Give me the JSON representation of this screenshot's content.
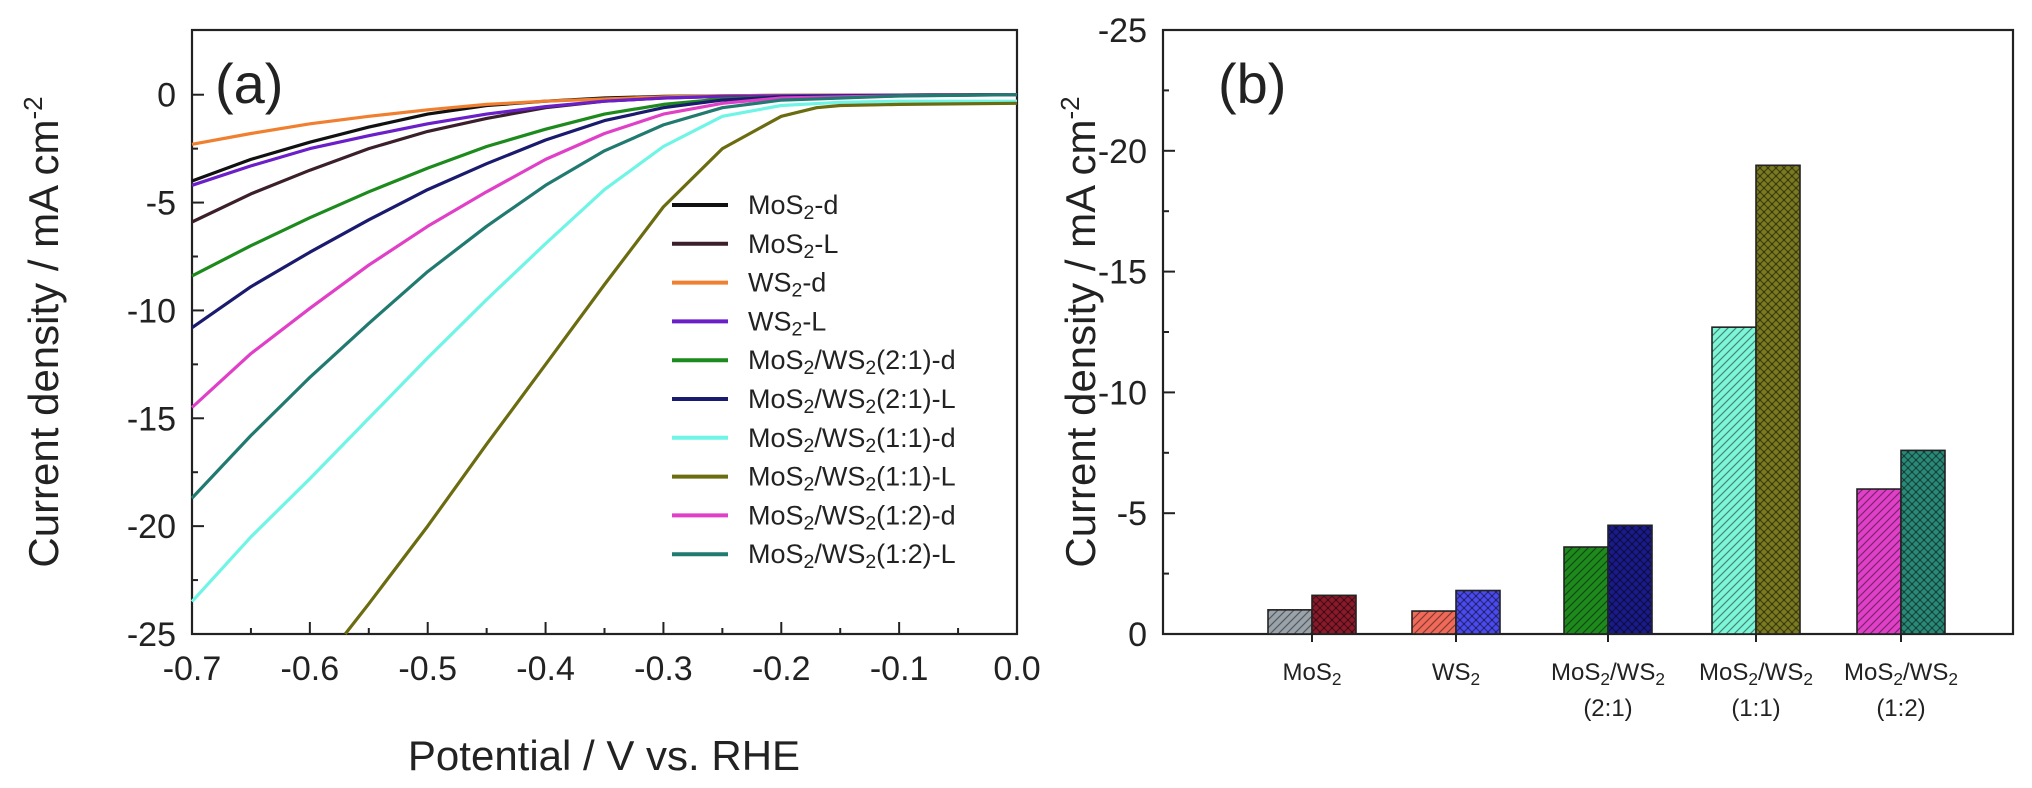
{
  "chart_data": [
    {
      "type": "line",
      "panel_label": "(a)",
      "xlabel": "Potential / V vs. RHE",
      "ylabel": "Current density / mA cm",
      "ylabel_sup": "-2",
      "xlim": [
        -0.7,
        0.0
      ],
      "ylim": [
        -25,
        3
      ],
      "x_ticks": [
        -0.7,
        -0.6,
        -0.5,
        -0.4,
        -0.3,
        -0.2,
        -0.1,
        0.0
      ],
      "x_tick_labels": [
        "-0.7",
        "-0.6",
        "-0.5",
        "-0.4",
        "-0.3",
        "-0.2",
        "-0.1",
        "0.0"
      ],
      "y_ticks": [
        0,
        -5,
        -10,
        -15,
        -20,
        -25
      ],
      "y_tick_labels": [
        "0",
        "-5",
        "-10",
        "-15",
        "-20",
        "-25"
      ],
      "grid": false,
      "legend_position": "right",
      "series": [
        {
          "name": "MoS₂-d",
          "color": "#111111",
          "x": [
            -0.7,
            -0.65,
            -0.6,
            -0.55,
            -0.5,
            -0.45,
            -0.4,
            -0.35,
            -0.3,
            -0.25,
            -0.2,
            -0.1,
            0.0
          ],
          "y": [
            -4.0,
            -3.0,
            -2.2,
            -1.5,
            -0.9,
            -0.5,
            -0.3,
            -0.15,
            -0.08,
            -0.05,
            -0.03,
            -0.02,
            0.0
          ]
        },
        {
          "name": "MoS₂-L",
          "color": "#3b1f2b",
          "x": [
            -0.7,
            -0.65,
            -0.6,
            -0.55,
            -0.5,
            -0.45,
            -0.4,
            -0.35,
            -0.3,
            -0.25,
            -0.2,
            -0.1,
            0.0
          ],
          "y": [
            -5.9,
            -4.6,
            -3.5,
            -2.5,
            -1.7,
            -1.1,
            -0.6,
            -0.3,
            -0.15,
            -0.08,
            -0.04,
            -0.02,
            0.0
          ]
        },
        {
          "name": "WS₂-d",
          "color": "#f08030",
          "x": [
            -0.7,
            -0.65,
            -0.6,
            -0.55,
            -0.5,
            -0.45,
            -0.4,
            -0.35,
            -0.3,
            -0.25,
            -0.2,
            -0.1,
            0.0
          ],
          "y": [
            -2.3,
            -1.8,
            -1.35,
            -1.0,
            -0.7,
            -0.45,
            -0.3,
            -0.2,
            -0.1,
            -0.05,
            -0.03,
            -0.02,
            0.0
          ]
        },
        {
          "name": "WS₂-L",
          "color": "#6a1fc8",
          "x": [
            -0.7,
            -0.65,
            -0.6,
            -0.55,
            -0.5,
            -0.45,
            -0.4,
            -0.35,
            -0.3,
            -0.25,
            -0.2,
            -0.1,
            0.0
          ],
          "y": [
            -4.2,
            -3.3,
            -2.5,
            -1.9,
            -1.35,
            -0.9,
            -0.55,
            -0.3,
            -0.15,
            -0.08,
            -0.05,
            -0.02,
            0.0
          ]
        },
        {
          "name": "MoS₂/WS₂(2:1)-d",
          "color": "#1d8a1d",
          "x": [
            -0.7,
            -0.65,
            -0.6,
            -0.55,
            -0.5,
            -0.45,
            -0.4,
            -0.35,
            -0.3,
            -0.25,
            -0.2,
            -0.1,
            0.0
          ],
          "y": [
            -8.4,
            -7.0,
            -5.7,
            -4.5,
            -3.4,
            -2.4,
            -1.6,
            -0.9,
            -0.45,
            -0.2,
            -0.1,
            -0.03,
            0.0
          ]
        },
        {
          "name": "MoS₂/WS₂(2:1)-L",
          "color": "#1a1a6e",
          "x": [
            -0.7,
            -0.65,
            -0.6,
            -0.55,
            -0.5,
            -0.45,
            -0.4,
            -0.35,
            -0.3,
            -0.25,
            -0.2,
            -0.1,
            0.0
          ],
          "y": [
            -10.8,
            -8.9,
            -7.3,
            -5.8,
            -4.4,
            -3.2,
            -2.1,
            -1.2,
            -0.6,
            -0.25,
            -0.1,
            -0.03,
            0.0
          ]
        },
        {
          "name": "MoS₂/WS₂(1:1)-d",
          "color": "#6ff5e5",
          "x": [
            -0.7,
            -0.65,
            -0.6,
            -0.55,
            -0.5,
            -0.45,
            -0.4,
            -0.35,
            -0.3,
            -0.25,
            -0.2,
            -0.15,
            -0.1,
            0.0
          ],
          "y": [
            -23.5,
            -20.5,
            -17.8,
            -15.0,
            -12.2,
            -9.5,
            -6.9,
            -4.4,
            -2.4,
            -1.0,
            -0.5,
            -0.35,
            -0.3,
            -0.3
          ]
        },
        {
          "name": "MoS₂/WS₂(1:1)-L",
          "color": "#6b6b10",
          "x": [
            -0.57,
            -0.55,
            -0.5,
            -0.45,
            -0.4,
            -0.35,
            -0.3,
            -0.25,
            -0.2,
            -0.17,
            -0.15,
            -0.1,
            0.0
          ],
          "y": [
            -25.0,
            -23.6,
            -20.0,
            -16.2,
            -12.5,
            -8.8,
            -5.2,
            -2.5,
            -1.0,
            -0.6,
            -0.5,
            -0.45,
            -0.4
          ]
        },
        {
          "name": "MoS₂/WS₂(1:2)-d",
          "color": "#e040c8",
          "x": [
            -0.7,
            -0.65,
            -0.6,
            -0.55,
            -0.5,
            -0.45,
            -0.4,
            -0.35,
            -0.3,
            -0.25,
            -0.2,
            -0.1,
            0.0
          ],
          "y": [
            -14.5,
            -12.0,
            -9.9,
            -7.9,
            -6.1,
            -4.5,
            -3.0,
            -1.8,
            -0.9,
            -0.4,
            -0.15,
            -0.05,
            0.0
          ]
        },
        {
          "name": "MoS₂/WS₂(1:2)-L",
          "color": "#217a70",
          "x": [
            -0.7,
            -0.65,
            -0.6,
            -0.55,
            -0.5,
            -0.45,
            -0.4,
            -0.35,
            -0.3,
            -0.25,
            -0.2,
            -0.1,
            0.0
          ],
          "y": [
            -18.7,
            -15.8,
            -13.1,
            -10.6,
            -8.2,
            -6.1,
            -4.2,
            -2.6,
            -1.4,
            -0.6,
            -0.25,
            -0.06,
            0.0
          ]
        }
      ]
    },
    {
      "type": "bar",
      "panel_label": "(b)",
      "xlabel": "",
      "ylabel": "Current density / mA cm",
      "ylabel_sup": "-2",
      "ylim": [
        0,
        -25
      ],
      "y_ticks": [
        0,
        -5,
        -10,
        -15,
        -20,
        -25
      ],
      "y_tick_labels": [
        "0",
        "-5",
        "-10",
        "-15",
        "-20",
        "-25"
      ],
      "grid": false,
      "categories": [
        {
          "line1": "MoS₂",
          "line2": ""
        },
        {
          "line1": "WS₂",
          "line2": ""
        },
        {
          "line1": "MoS₂/WS₂",
          "line2": "(2:1)"
        },
        {
          "line1": "MoS₂/WS₂",
          "line2": "(1:1)"
        },
        {
          "line1": "MoS₂/WS₂",
          "line2": "(1:2)"
        }
      ],
      "series": [
        {
          "key": "d",
          "pattern": "hatch",
          "values": [
            -1.0,
            -0.95,
            -3.6,
            -12.7,
            -6.0
          ],
          "colors": [
            "#9aa3aa",
            "#f06a5a",
            "#1e8a1e",
            "#7df6d8",
            "#e040c8"
          ]
        },
        {
          "key": "L",
          "pattern": "crosshatch",
          "values": [
            -1.6,
            -1.8,
            -4.5,
            -19.4,
            -7.6
          ],
          "colors": [
            "#8a1a2a",
            "#4a4aee",
            "#1a1a8a",
            "#7a7a20",
            "#2a8a78"
          ]
        }
      ]
    }
  ]
}
